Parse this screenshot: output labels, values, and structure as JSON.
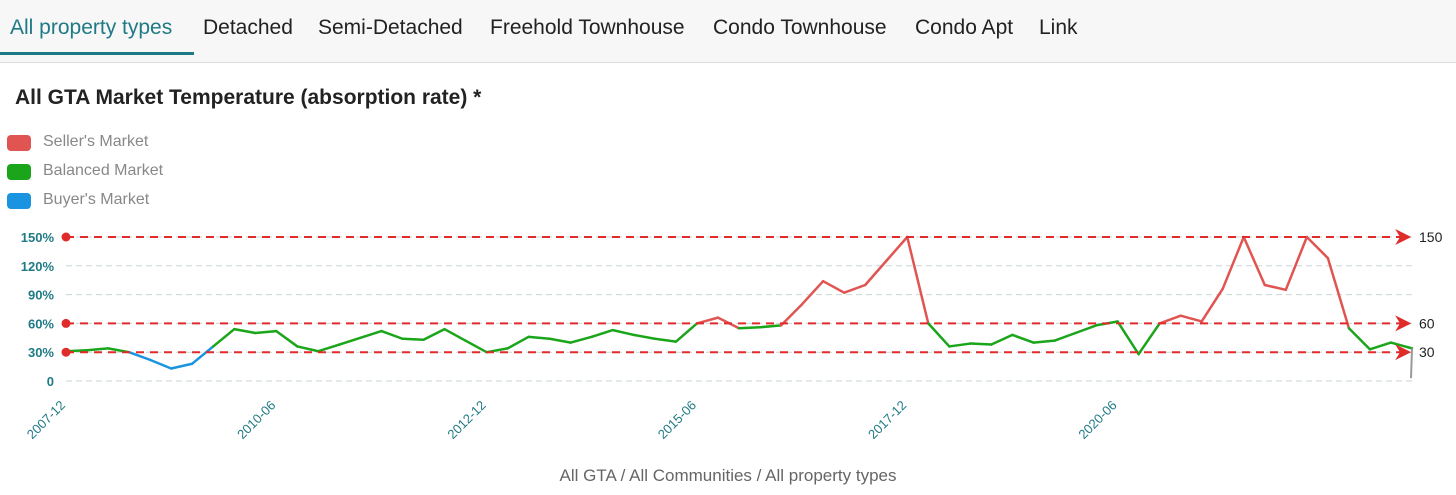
{
  "tabs": [
    {
      "label": "All property types",
      "active": true
    },
    {
      "label": "Detached",
      "active": false
    },
    {
      "label": "Semi-Detached",
      "active": false
    },
    {
      "label": "Freehold Townhouse",
      "active": false
    },
    {
      "label": "Condo Townhouse",
      "active": false
    },
    {
      "label": "Condo Apt",
      "active": false
    },
    {
      "label": "Link",
      "active": false
    }
  ],
  "colors": {
    "accent": "#1f7a85",
    "sellers": "#e05552",
    "balanced": "#1aa51a",
    "buyers": "#1a94e0",
    "threshold": "#e02b2b",
    "tail": "#999999"
  },
  "chart_data": {
    "type": "line",
    "title": "All GTA Market Temperature (absorption rate) *",
    "legend": [
      {
        "label": "Seller's Market",
        "color": "#e05552"
      },
      {
        "label": "Balanced Market",
        "color": "#1aa51a"
      },
      {
        "label": "Buyer's Market",
        "color": "#1a94e0"
      }
    ],
    "legend_position": "top-left",
    "ylim": [
      0,
      150
    ],
    "yticks": [
      {
        "value": 0,
        "label": "0"
      },
      {
        "value": 30,
        "label": "30%"
      },
      {
        "value": 60,
        "label": "60%"
      },
      {
        "value": 90,
        "label": "90%"
      },
      {
        "value": 120,
        "label": "120%"
      },
      {
        "value": 150,
        "label": "150%"
      }
    ],
    "xticks": [
      "2007-12",
      "2010-06",
      "2012-12",
      "2015-06",
      "2017-12",
      "2020-06"
    ],
    "xlim": [
      "2007-12",
      "2023-12"
    ],
    "grid": true,
    "thresholds": [
      {
        "value": 150,
        "label": "150"
      },
      {
        "value": 60,
        "label": "60"
      },
      {
        "value": 30,
        "label": "30"
      }
    ],
    "series": [
      {
        "points": [
          [
            "2007-12",
            31
          ],
          [
            "2008-03",
            32
          ],
          [
            "2008-06",
            34
          ],
          [
            "2008-09",
            30
          ],
          [
            "2008-12",
            22
          ],
          [
            "2009-03",
            13
          ],
          [
            "2009-06",
            18
          ],
          [
            "2009-09",
            36
          ],
          [
            "2009-12",
            54
          ],
          [
            "2010-03",
            50
          ],
          [
            "2010-06",
            52
          ],
          [
            "2010-09",
            36
          ],
          [
            "2010-12",
            31
          ],
          [
            "2011-03",
            38
          ],
          [
            "2011-06",
            45
          ],
          [
            "2011-09",
            52
          ],
          [
            "2011-12",
            44
          ],
          [
            "2012-03",
            43
          ],
          [
            "2012-06",
            54
          ],
          [
            "2012-09",
            42
          ],
          [
            "2012-12",
            30
          ],
          [
            "2013-03",
            34
          ],
          [
            "2013-06",
            46
          ],
          [
            "2013-09",
            44
          ],
          [
            "2013-12",
            40
          ],
          [
            "2014-03",
            46
          ],
          [
            "2014-06",
            53
          ],
          [
            "2014-09",
            48
          ],
          [
            "2014-12",
            44
          ],
          [
            "2015-03",
            41
          ],
          [
            "2015-06",
            60
          ],
          [
            "2015-09",
            66
          ],
          [
            "2015-12",
            55
          ],
          [
            "2016-03",
            56
          ],
          [
            "2016-06",
            58
          ],
          [
            "2016-09",
            80
          ],
          [
            "2016-12",
            104
          ],
          [
            "2017-03",
            92
          ],
          [
            "2017-06",
            100
          ],
          [
            "2017-09",
            125
          ],
          [
            "2017-12",
            150
          ],
          [
            "2018-03",
            60
          ],
          [
            "2018-06",
            36
          ],
          [
            "2018-09",
            39
          ],
          [
            "2018-12",
            38
          ],
          [
            "2019-03",
            48
          ],
          [
            "2019-06",
            40
          ],
          [
            "2019-09",
            42
          ],
          [
            "2019-12",
            50
          ],
          [
            "2020-03",
            58
          ],
          [
            "2020-06",
            62
          ],
          [
            "2020-09",
            28
          ],
          [
            "2020-12",
            60
          ],
          [
            "2021-03",
            68
          ],
          [
            "2021-06",
            62
          ],
          [
            "2021-09",
            96
          ],
          [
            "2021-12",
            150
          ],
          [
            "2022-03",
            100
          ],
          [
            "2022-06",
            95
          ],
          [
            "2022-09",
            150
          ],
          [
            "2022-12",
            128
          ],
          [
            "2023-03",
            55
          ],
          [
            "2023-06",
            33
          ],
          [
            "2023-09",
            40
          ],
          [
            "2023-12",
            34
          ]
        ]
      }
    ]
  },
  "footer": {
    "part1": "All GTA",
    "sep": " / ",
    "part2": "All Communities",
    "part3": "All property types"
  }
}
